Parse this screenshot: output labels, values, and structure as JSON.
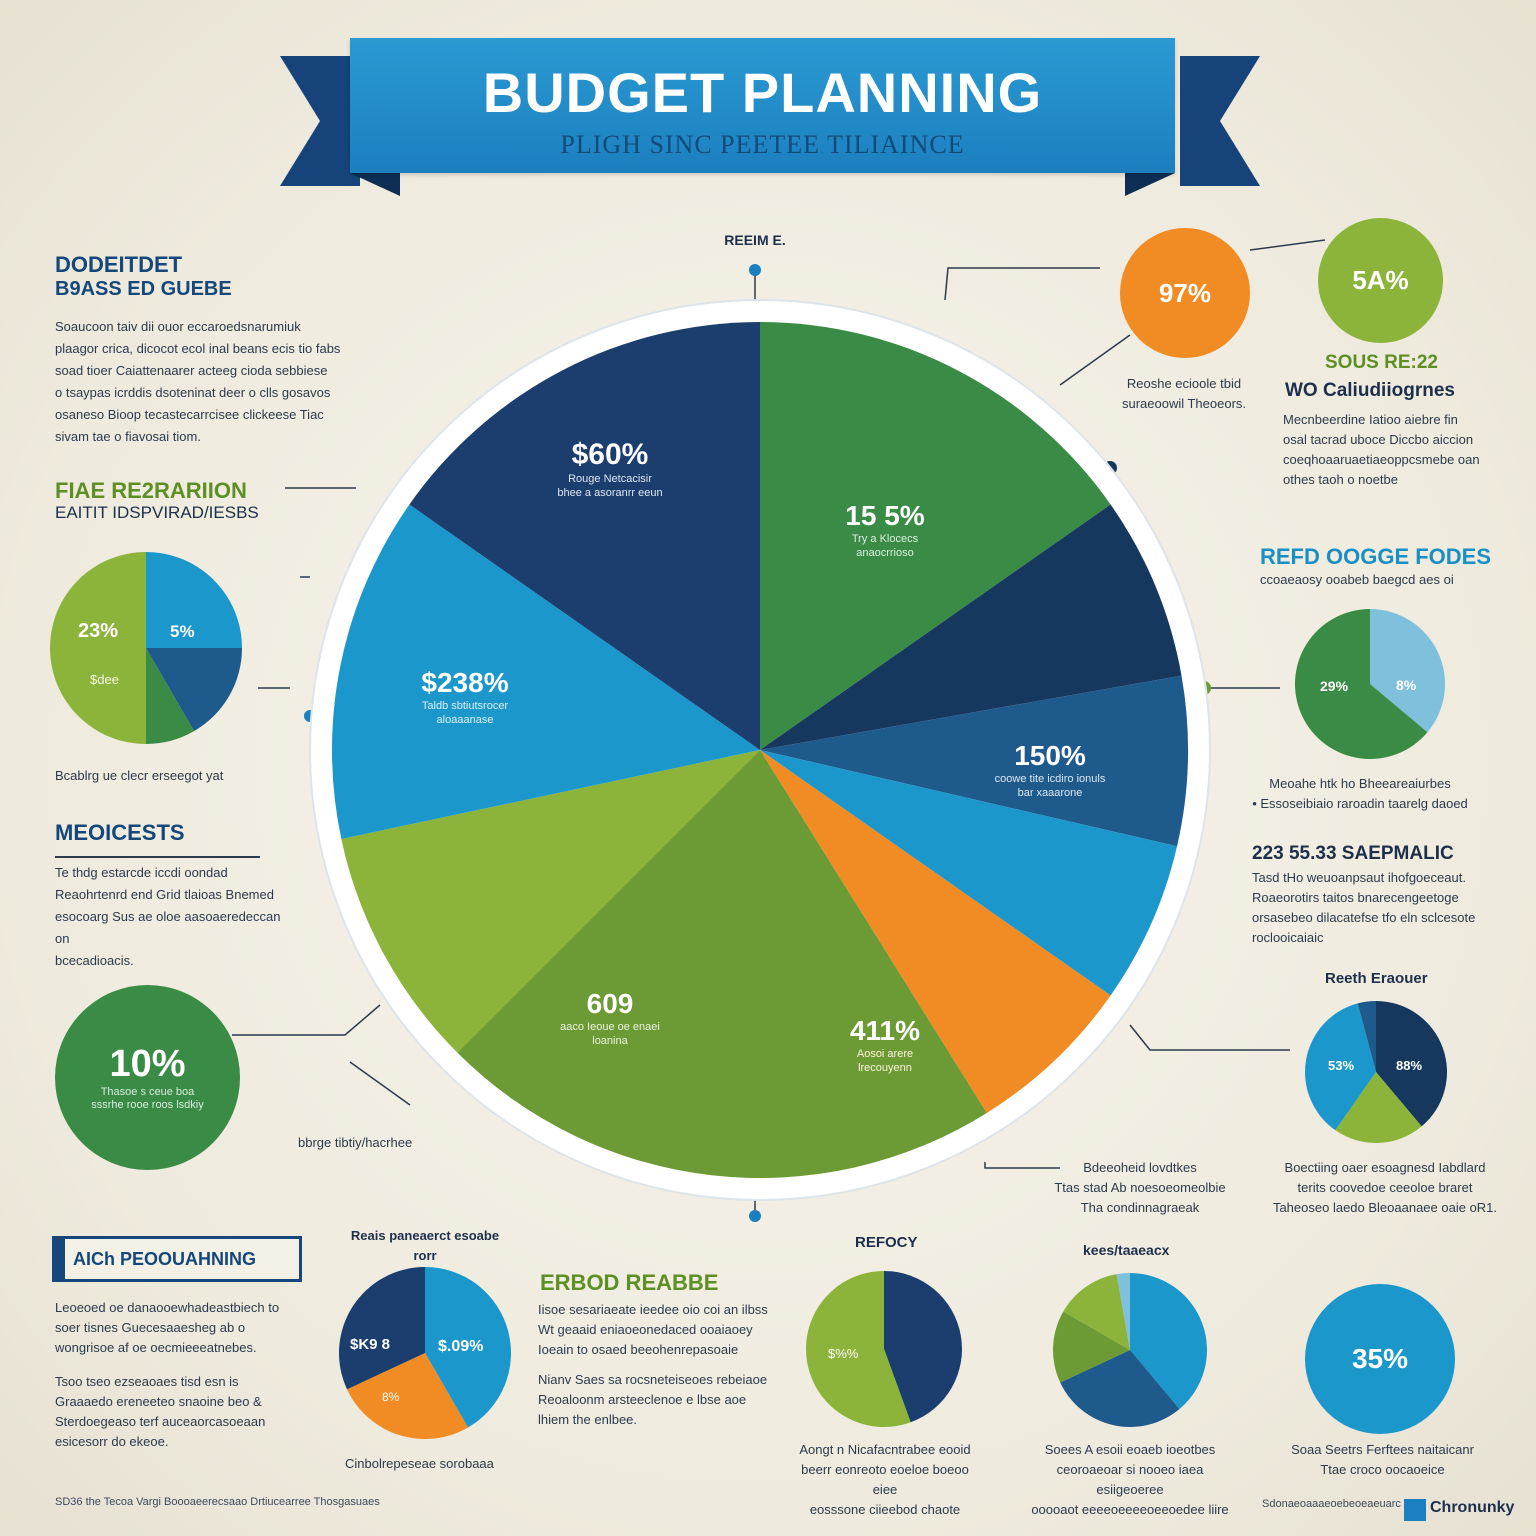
{
  "colors": {
    "dark_navy": "#1b3e6e",
    "navy": "#16375e",
    "steel_blue": "#1e5a8c",
    "sky_blue": "#1b97cc",
    "green": "#3a8b45",
    "olive_green": "#6c9b35",
    "lime": "#8cb43a",
    "orange": "#f08c23",
    "pale_blue": "#7fc1dd"
  },
  "banner": {
    "title": "BUDGET PLANNING",
    "subtitle": "PLIGH SINC PEETEE TILIAINCE"
  },
  "main_pie": {
    "top_label": "REEIM E.",
    "labels": [
      {
        "value": "$60%",
        "caption": "Rouge Netcacisir\nbhee a asoranrr eeun"
      },
      {
        "value": "15 5%",
        "caption": "Try a Klocecs\nanaocrrioso"
      },
      {
        "value": "150%",
        "caption": "coowe tite icdiro ionuls\nbar xaaarone"
      },
      {
        "value": "411%",
        "caption": "Aosoi arere\nlrecouyenn"
      },
      {
        "value": "609",
        "caption": "aaco Ieoue oe enaei\nloanina"
      },
      {
        "value": "$238%",
        "caption": "Taldb sbtiutsrocer\naloaaanase"
      }
    ]
  },
  "left": {
    "heading1_line1": "DODEITDET",
    "heading1_line2": "B9ASS ED GUEBE",
    "para1": "Soaucoon taiv dii ouor eccaroedsnarumiuk\nplaagor crica, dicocot ecol inal beans ecis tio fabs\nsoad tioer Caiattenaarer acteeg cioda sebbiese\no tsaypas icrddis dsoteninat deer o clls gosavos\nosaneso Bioop tecastecarrcisee clickeese Tiac\nsivam tae o fiavosai tiom.",
    "heading2_line1": "FIAE RE2RARIION",
    "heading2_line2": "EAITIT IDSPVIRAD/IESBS",
    "mini_pie_labels": [
      "23%",
      "5%",
      "$dee"
    ],
    "mini_pie_caption": "Bcablrg ue clecr erseegot yat",
    "heading3": "MEOICESTS",
    "para3": "Te thdg estarcde iccdi oondad\nReaohrtenrd end Grid tlaioas Bnemed\nesocoarg Sus ae oloe aasoaeredeccan on\nbcecadioacis.",
    "bubble_value": "10%",
    "bubble_caption": "Thasoe s ceue boa\nsssrhe rooe roos lsdkiy",
    "bubble_note": "bbrge tibtiy/hacrhee"
  },
  "right": {
    "bubble_orange_value": "97%",
    "bubble_orange_caption": "Reoshe ecioole tbid\nsuraeoowil Theoeors.",
    "bubble_lime_value": "5A%",
    "heading1_line1": "SOUS RE:22",
    "heading1_line2": "WO Caliudiiogrnes",
    "para1": "Mecnbeerdine Iatioo aiebre fin\nosal tacrad uboce Diccbo aiccion\ncoeqhoaaruaetiaeoppcsmebe oan\nothes taoh o noetbe",
    "heading2": "REFD OOGGE FODES",
    "heading2_sub": "ccoaeaosy ooabeb baegcd aes oi",
    "mini_pie1_labels": [
      "29%",
      "8%"
    ],
    "mini_pie1_caption": "Meoahe htk ho Bheeareaiurbes\n• Essoseibiaio raroadin taarelg daoed",
    "heading3": "223 55.33 SAEPMALIC",
    "para3": "Tasd tHo weuoanpsaut ihofgoeceaut.\nRoaeorotirs taitos bnarecengeetoge\norsasebeo dilacatefse tfo eln sclcesote\nroclooicaiaic",
    "mini_pie2_title": "Reeth Eraouer",
    "mini_pie2_labels": [
      "53%",
      "88%"
    ],
    "para4_left": "Bdeeoheid lovdtkes\nTtas stad Ab noesoeomeolbie\nTha condinnagraeak",
    "para4_right": "Boectiing oaer esoagnesd Iabdlard\nterits coovedoe ceeoloe braret\nTaheoseo laedo Bleoaanaee oaie oR1."
  },
  "bottom": {
    "box_title": "AICh PEOOUAHNING",
    "para1": "Leoeoed oe danaooewhadeastbiech to\nsoer tisnes Guecesaaesheg ab o\nwongrisoe af oe oecmieeeatnebes.",
    "para2": "Tsoo tseo ezseaoaes tisd esn is\nGraaaedo ereneeteo snaoine beo &\nSterdoegeaso terf auceaorcasoeaan\nesicesorr do ekeoe.",
    "pie1_title": "Reais paneaerct esoabe\nrorr",
    "pie1_labels": [
      "$K9 8",
      "$.09%",
      "8%"
    ],
    "pie1_caption": "Cinbolrepeseae sorobaaa",
    "heading_mid": "ERBOD REABBE",
    "para_mid1": "Iisoe sesariaeate ieedee oio coi an ilbss\nWt geaaid eniaoeonedaced ooaiaoey\nIoeain to osaed beeohenrepasoaie",
    "para_mid2": "Nianv Saes sa rocsneteiseoes rebeiaoe\nReoaloonm arsteeclenoe e lbse aoe\nlhiem the enlbee.",
    "pie2_title": "REFOCY",
    "pie2_label": "$%%",
    "pie2_caption": "Aongt n Nicafacntrabee eooid\nbeerr eonreoto eoeloe boeoo eiee\neosssone ciieebod chaote",
    "pie3_title": "kees/taaeacx",
    "pie3_caption": "Soees A esoii eoaeb ioeotbes\nceoroaeoar si nooeo iaea esiigeoeree\nooooaot eeeeoeeeeoeeoedee liire",
    "bubble_value": "35%",
    "bubble_caption": "Soaa Seetrs Ferftees naitaicanr\nTtae croco oocaoeice",
    "footer_left": "SD36 the Tecoa Vargi Boooaeerecsaao Drtiucearree Thosgasuaes",
    "footer_right": "Sdonaeoaaaeoebeoeaeuarc",
    "logo_text": "Chronunky"
  }
}
